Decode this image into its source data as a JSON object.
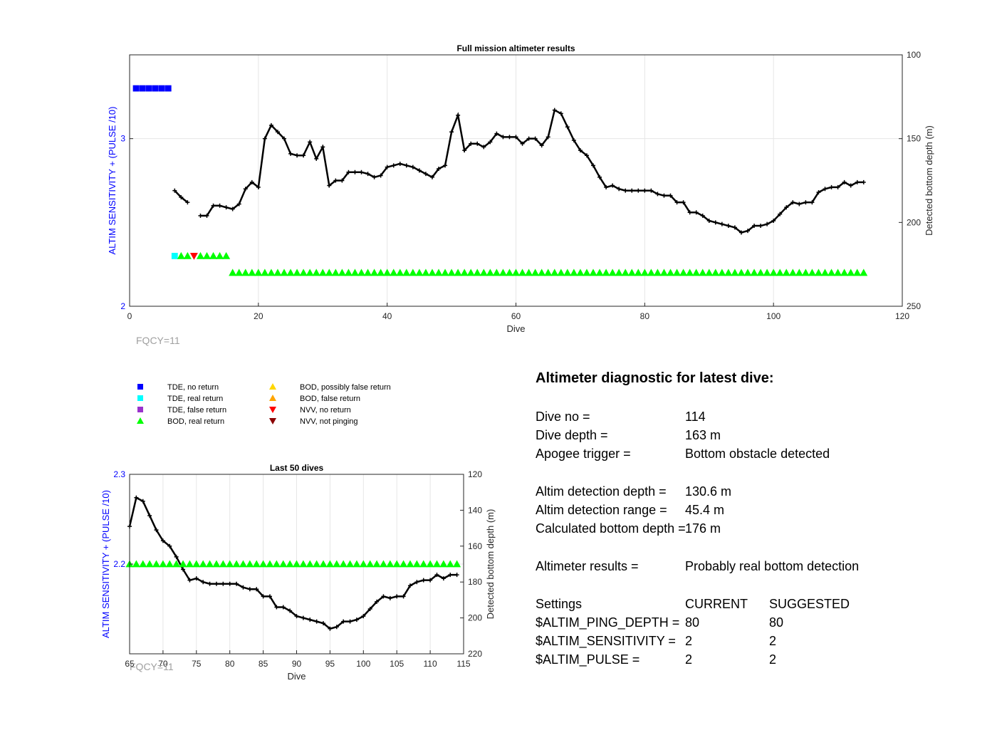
{
  "chart_data": [
    {
      "type": "line",
      "title": "Full mission altimeter results",
      "xlabel": "Dive",
      "ylabel_left": "ALTIM SENSITIVITY + (PULSE /10)",
      "ylabel_right": "Detected bottom depth (m)",
      "xlim": [
        0,
        120
      ],
      "ylim_left": [
        2,
        3.5
      ],
      "ylim_right": [
        100,
        250
      ],
      "right_axis_reversed": true,
      "xticks": [
        "0",
        "20",
        "40",
        "60",
        "80",
        "100",
        "120"
      ],
      "yticks_left": [
        "2",
        "3"
      ],
      "yticks_right": [
        "100",
        "150",
        "200",
        "250"
      ],
      "grid": true,
      "bottom_depth_series": {
        "name": "Detected bottom depth",
        "segments": [
          [
            [
              7,
              181
            ],
            [
              8,
              185
            ],
            [
              9,
              188
            ]
          ],
          [
            [
              11,
              196
            ],
            [
              12,
              196
            ],
            [
              13,
              190
            ],
            [
              14,
              190
            ],
            [
              15,
              191
            ],
            [
              16,
              192
            ],
            [
              17,
              189
            ],
            [
              18,
              180
            ],
            [
              19,
              176
            ],
            [
              20,
              179
            ],
            [
              21,
              150
            ],
            [
              22,
              142
            ],
            [
              23,
              146
            ],
            [
              24,
              150
            ],
            [
              25,
              159
            ],
            [
              26,
              160
            ],
            [
              27,
              160
            ],
            [
              28,
              152
            ],
            [
              29,
              162
            ],
            [
              30,
              155
            ],
            [
              31,
              178
            ],
            [
              32,
              175
            ],
            [
              33,
              175
            ],
            [
              34,
              170
            ],
            [
              35,
              170
            ],
            [
              36,
              170
            ],
            [
              37,
              171
            ],
            [
              38,
              173
            ],
            [
              39,
              172
            ],
            [
              40,
              167
            ],
            [
              41,
              166
            ],
            [
              42,
              165
            ],
            [
              43,
              166
            ],
            [
              44,
              167
            ],
            [
              45,
              169
            ],
            [
              46,
              171
            ],
            [
              47,
              173
            ],
            [
              48,
              168
            ],
            [
              49,
              166
            ],
            [
              50,
              146
            ],
            [
              51,
              136
            ],
            [
              52,
              157
            ],
            [
              53,
              153
            ],
            [
              54,
              153
            ],
            [
              55,
              155
            ],
            [
              56,
              152
            ],
            [
              57,
              147
            ],
            [
              58,
              149
            ],
            [
              59,
              149
            ],
            [
              60,
              149
            ],
            [
              61,
              153
            ],
            [
              62,
              150
            ],
            [
              63,
              150
            ],
            [
              64,
              154
            ],
            [
              65,
              149
            ],
            [
              66,
              133
            ],
            [
              67,
              135
            ],
            [
              68,
              143
            ],
            [
              69,
              151
            ],
            [
              70,
              157
            ],
            [
              71,
              160
            ],
            [
              72,
              166
            ],
            [
              73,
              173
            ],
            [
              74,
              179
            ],
            [
              75,
              178
            ],
            [
              76,
              180
            ],
            [
              77,
              181
            ],
            [
              78,
              181
            ],
            [
              79,
              181
            ],
            [
              80,
              181
            ],
            [
              81,
              181
            ],
            [
              82,
              183
            ],
            [
              83,
              184
            ],
            [
              84,
              184
            ],
            [
              85,
              188
            ],
            [
              86,
              188
            ],
            [
              87,
              194
            ],
            [
              88,
              194
            ],
            [
              89,
              196
            ],
            [
              90,
              199
            ],
            [
              91,
              200
            ],
            [
              92,
              201
            ],
            [
              93,
              202
            ],
            [
              94,
              203
            ],
            [
              95,
              206
            ],
            [
              96,
              205
            ],
            [
              97,
              202
            ],
            [
              98,
              202
            ],
            [
              99,
              201
            ],
            [
              100,
              199
            ],
            [
              101,
              195
            ],
            [
              102,
              191
            ],
            [
              103,
              188
            ],
            [
              104,
              189
            ],
            [
              105,
              188
            ],
            [
              106,
              188
            ],
            [
              107,
              182
            ],
            [
              108,
              180
            ],
            [
              109,
              179
            ],
            [
              110,
              179
            ],
            [
              111,
              176
            ],
            [
              112,
              178
            ],
            [
              113,
              176
            ],
            [
              114,
              176
            ]
          ]
        ]
      },
      "markers": [
        {
          "type": "TDE, no return",
          "color": "#0000ff",
          "shape": "square",
          "y": 3.3,
          "x": [
            1,
            2,
            3,
            4,
            5,
            6
          ]
        },
        {
          "type": "TDE, real return",
          "color": "#00ffff",
          "shape": "square",
          "y": 2.3,
          "x": [
            7
          ]
        },
        {
          "type": "BOD, real return",
          "color": "#00ff00",
          "shape": "triangle-up",
          "y": 2.3,
          "x": [
            8,
            9,
            11,
            12,
            13,
            14,
            15
          ]
        },
        {
          "type": "NVV, no return",
          "color": "#ff0000",
          "shape": "triangle-down",
          "y": 2.3,
          "x": [
            10
          ]
        },
        {
          "type": "BOD, real return",
          "color": "#00ff00",
          "shape": "triangle-up",
          "y": 2.2,
          "x_range": [
            16,
            114
          ]
        }
      ],
      "annotation": "FQCY=11"
    },
    {
      "type": "line",
      "title": "Last 50 dives",
      "xlabel": "Dive",
      "ylabel_left": "ALTIM SENSITIVITY + (PULSE /10)",
      "ylabel_right": "Detected bottom depth (m)",
      "xlim": [
        65,
        115
      ],
      "ylim_left": [
        2.1,
        2.3
      ],
      "ylim_right": [
        120,
        220
      ],
      "right_axis_reversed": true,
      "xticks": [
        "65",
        "70",
        "75",
        "80",
        "85",
        "90",
        "95",
        "100",
        "105",
        "110",
        "115"
      ],
      "yticks_left": [
        "2.2",
        "2.3"
      ],
      "yticks_right": [
        "120",
        "140",
        "160",
        "180",
        "200",
        "220"
      ],
      "grid": true,
      "markers": [
        {
          "type": "BOD, real return",
          "color": "#00ff00",
          "shape": "triangle-up",
          "y": 2.2,
          "x_range": [
            65,
            114
          ]
        }
      ],
      "annotation": "FQCY=11"
    }
  ],
  "legend": [
    {
      "label": "TDE, no return",
      "color": "#0000ff",
      "shape": "square"
    },
    {
      "label": "TDE, real return",
      "color": "#00ffff",
      "shape": "square"
    },
    {
      "label": "TDE, false return",
      "color": "#9932cc",
      "shape": "square"
    },
    {
      "label": "BOD, real return",
      "color": "#00ff00",
      "shape": "triangle-up"
    },
    {
      "label": "BOD, possibly false return",
      "color": "#ffd700",
      "shape": "triangle-up"
    },
    {
      "label": "BOD, false return",
      "color": "#ffa500",
      "shape": "triangle-up"
    },
    {
      "label": "NVV, no return",
      "color": "#ff0000",
      "shape": "triangle-down"
    },
    {
      "label": "NVV, not pinging",
      "color": "#8b0000",
      "shape": "triangle-down"
    }
  ],
  "diagnostic": {
    "title": "Altimeter diagnostic for latest dive:",
    "rows": [
      {
        "label": "Dive no =",
        "value": "114"
      },
      {
        "label": "Dive depth =",
        "value": "163 m"
      },
      {
        "label": "Apogee trigger =",
        "value": "Bottom obstacle detected"
      },
      {
        "label": "Altim detection depth =",
        "value": "130.6 m"
      },
      {
        "label": "Altim detection range =",
        "value": "45.4 m"
      },
      {
        "label": "Calculated bottom depth =",
        "value": "176 m"
      },
      {
        "label": "Altimeter results =",
        "value": "Probably real bottom detection"
      }
    ],
    "settings_header": {
      "label": "Settings",
      "current": "CURRENT",
      "suggested": "SUGGESTED"
    },
    "settings": [
      {
        "label": "$ALTIM_PING_DEPTH =",
        "current": "80",
        "suggested": "80"
      },
      {
        "label": "$ALTIM_SENSITIVITY =",
        "current": "2",
        "suggested": "2"
      },
      {
        "label": "$ALTIM_PULSE =",
        "current": "2",
        "suggested": "2"
      }
    ]
  }
}
